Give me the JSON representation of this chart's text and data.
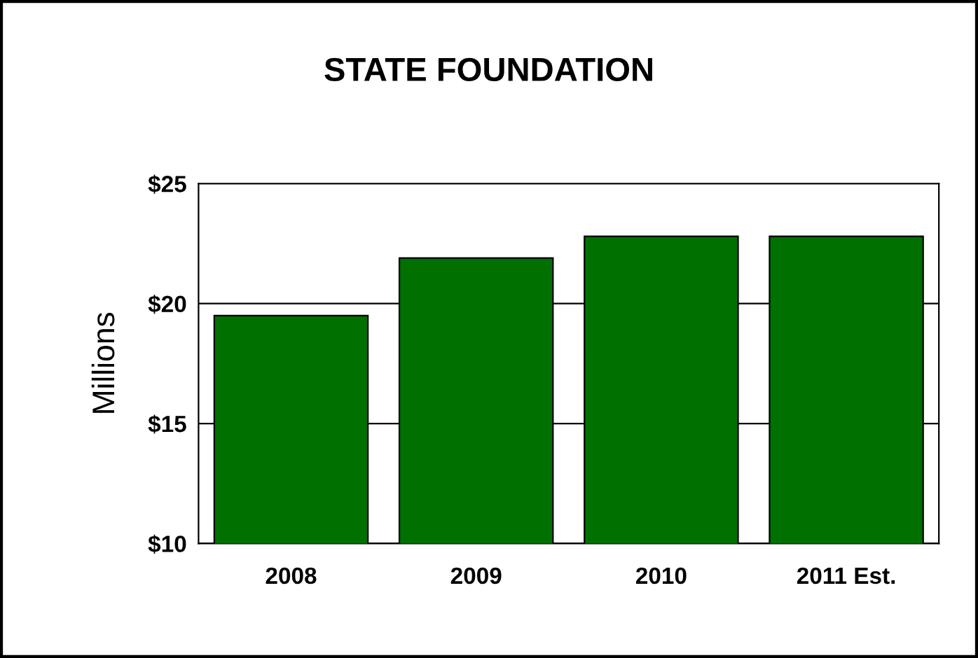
{
  "chart_data": {
    "type": "bar",
    "title": "STATE FOUNDATION",
    "ylabel": "Millions",
    "categories": [
      "2008",
      "2009",
      "2010",
      "2011 Est."
    ],
    "values": [
      19.5,
      21.9,
      22.8,
      22.8
    ],
    "color": "#007000",
    "ylim": [
      10,
      25
    ],
    "yticks": [
      {
        "value": 10,
        "label": "$10"
      },
      {
        "value": 15,
        "label": "$15"
      },
      {
        "value": 20,
        "label": "$20"
      },
      {
        "value": 25,
        "label": "$25"
      }
    ],
    "grid": "y",
    "legend": false
  }
}
